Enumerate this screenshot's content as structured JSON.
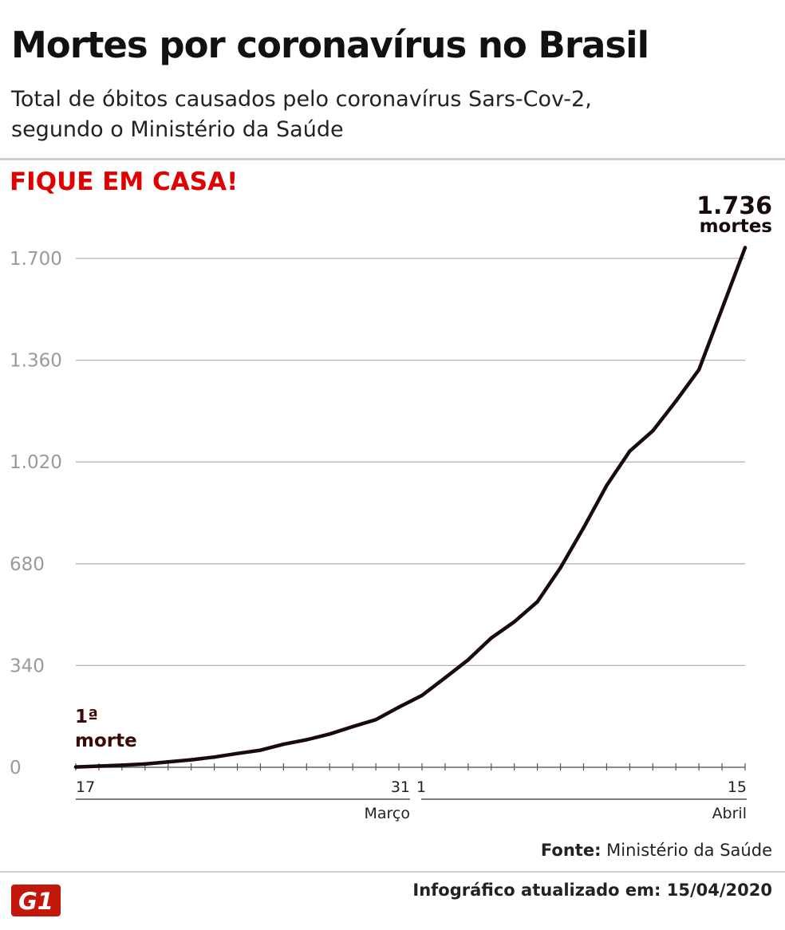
{
  "header": {
    "title": "Mortes por coronavírus no Brasil",
    "subtitle_line1": "Total de óbitos causados pelo coronavírus Sars-Cov-2,",
    "subtitle_line2": "segundo o Ministério da Saúde",
    "callout": "FIQUE EM CASA!"
  },
  "chart_data": {
    "type": "line",
    "title": "Mortes por coronavírus no Brasil",
    "xlabel": "",
    "ylabel": "",
    "ylim": [
      0,
      1736
    ],
    "yticks": [
      0,
      340,
      680,
      1020,
      1360,
      1700
    ],
    "ytick_labels": [
      "0",
      "340",
      "680",
      "1.020",
      "1.360",
      "1.700"
    ],
    "grid": true,
    "x": [
      "17/03",
      "18/03",
      "19/03",
      "20/03",
      "21/03",
      "22/03",
      "23/03",
      "24/03",
      "25/03",
      "26/03",
      "27/03",
      "28/03",
      "29/03",
      "30/03",
      "31/03",
      "01/04",
      "02/04",
      "03/04",
      "04/04",
      "05/04",
      "06/04",
      "07/04",
      "08/04",
      "09/04",
      "10/04",
      "11/04",
      "12/04",
      "13/04",
      "14/04",
      "15/04"
    ],
    "values": [
      1,
      4,
      7,
      11,
      18,
      25,
      34,
      46,
      57,
      77,
      92,
      111,
      136,
      159,
      201,
      240,
      299,
      359,
      432,
      486,
      553,
      667,
      800,
      941,
      1056,
      1124,
      1223,
      1328,
      1532,
      1736
    ],
    "series_color": "#1a0b0b",
    "annotations": {
      "first_death_line1": "1ª",
      "first_death_line2": "morte",
      "last_value": "1.736",
      "last_unit": "mortes"
    },
    "month_axis": {
      "march_start_day": "17",
      "march_end_day": "31",
      "march_label": "Março",
      "april_start_day": "1",
      "april_end_day": "15",
      "april_label": "Abril"
    }
  },
  "footer": {
    "source_label": "Fonte:",
    "source_value": "Ministério da Saúde",
    "logo_text": "G1",
    "updated_label": "Infográfico atualizado em:",
    "updated_date": "15/04/2020"
  },
  "colors": {
    "callout": "#e00000",
    "logo": "#c4170c",
    "line": "#1a0b0b",
    "grid": "#b5b5b5",
    "axis_tick_label": "#9a9a9a"
  }
}
